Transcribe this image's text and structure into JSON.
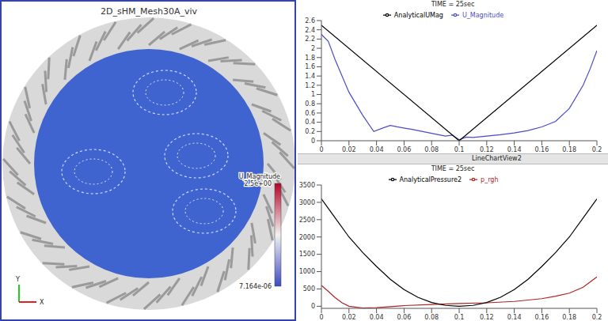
{
  "render": {
    "title": "2D_sHM_Mesh30A_viv",
    "axes_labels": [
      "Y",
      "X"
    ],
    "colorbar": {
      "title": "U_Magnitude",
      "range": [
        7.164e-06,
        2.5
      ],
      "ticks": [
        {
          "value": 7.164e-06,
          "label": "7.164e-06"
        },
        {
          "value": 2.5,
          "label": "2.5e+00"
        }
      ]
    }
  },
  "toolbar": "LineChartView2",
  "chart_data": [
    {
      "type": "line",
      "title": "TIME = 25sec",
      "xlim": [
        0,
        0.2
      ],
      "xticks": [
        0,
        0.02,
        0.04,
        0.06,
        0.08,
        0.1,
        0.12,
        0.14,
        0.16,
        0.18,
        0.2
      ],
      "ylim": [
        0,
        2.6
      ],
      "yticks": [
        0,
        0.2,
        0.4,
        0.6,
        0.8,
        1,
        1.2,
        1.4,
        1.6,
        1.8,
        2,
        2.2,
        2.4,
        2.6
      ],
      "grid": false,
      "legend": "top",
      "series": [
        {
          "name": "U_Magnitude",
          "color": "#4b4bc8",
          "line_style": "solid",
          "x": [
            0,
            0.005,
            0.01,
            0.02,
            0.03,
            0.038,
            0.045,
            0.05,
            0.055,
            0.065,
            0.075,
            0.085,
            0.09,
            0.095,
            0.1,
            0.105,
            0.11,
            0.12,
            0.13,
            0.14,
            0.15,
            0.16,
            0.17,
            0.18,
            0.19,
            0.195,
            0.2
          ],
          "values": [
            2.3,
            2.15,
            1.75,
            1.05,
            0.55,
            0.2,
            0.28,
            0.33,
            0.3,
            0.25,
            0.19,
            0.13,
            0.1,
            0.12,
            0.02,
            0.08,
            0.07,
            0.1,
            0.13,
            0.17,
            0.22,
            0.3,
            0.42,
            0.7,
            1.2,
            1.55,
            1.95
          ]
        },
        {
          "name": "AnalyticalUMag",
          "color": "#000000",
          "line_style": "solid",
          "x": [
            0,
            0.1,
            0.2
          ],
          "values": [
            2.5,
            0,
            2.5
          ]
        }
      ]
    },
    {
      "type": "line",
      "title": "TIME = 25sec",
      "xlim": [
        0,
        0.2
      ],
      "xticks": [
        0,
        0.02,
        0.04,
        0.06,
        0.08,
        0.1,
        0.12,
        0.14,
        0.16,
        0.18,
        0.2
      ],
      "ylim": [
        -60,
        3500
      ],
      "yticks": [
        0,
        500,
        1000,
        1500,
        2000,
        2500,
        3000,
        3500
      ],
      "grid": false,
      "legend": "top",
      "series": [
        {
          "name": "p_rgh",
          "color": "#b22222",
          "line_style": "solid",
          "x": [
            0,
            0.005,
            0.01,
            0.015,
            0.02,
            0.03,
            0.04,
            0.05,
            0.06,
            0.08,
            0.1,
            0.12,
            0.14,
            0.16,
            0.17,
            0.18,
            0.19,
            0.2
          ],
          "values": [
            600,
            430,
            250,
            100,
            0,
            -50,
            -40,
            -10,
            20,
            50,
            80,
            100,
            140,
            220,
            290,
            380,
            550,
            850
          ]
        },
        {
          "name": "AnalyticalPressure2",
          "color": "#000000",
          "line_style": "solid",
          "x": [
            0,
            0.01,
            0.02,
            0.03,
            0.04,
            0.05,
            0.06,
            0.07,
            0.08,
            0.09,
            0.1,
            0.11,
            0.12,
            0.13,
            0.14,
            0.15,
            0.16,
            0.17,
            0.18,
            0.19,
            0.2
          ],
          "values": [
            3100,
            2550,
            2000,
            1550,
            1150,
            780,
            480,
            260,
            110,
            25,
            0,
            25,
            110,
            260,
            480,
            780,
            1150,
            1550,
            2000,
            2550,
            3100
          ]
        }
      ]
    }
  ]
}
